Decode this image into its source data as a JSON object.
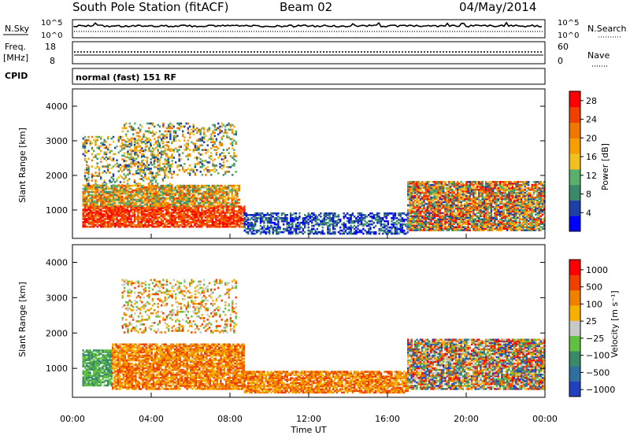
{
  "header": {
    "station": "South Pole Station (fitACF)",
    "beam": "Beam 02",
    "date": "04/May/2014"
  },
  "noise_panel": {
    "left_label": "N.Sky",
    "left_ticks": [
      "10^5",
      "10^0"
    ],
    "right_label": "N.Search",
    "right_ticks": [
      "10^5",
      "10^0"
    ]
  },
  "freq_panel": {
    "left_label_1": "Freq.",
    "left_label_2": "[MHz]",
    "left_ticks": [
      "18",
      "8"
    ],
    "right_label": "Nave",
    "right_ticks": [
      "60",
      "0"
    ]
  },
  "cpid": {
    "label": "CPID",
    "value": "normal (fast) 151 RF"
  },
  "colors": {
    "power_scale": [
      "#0000ff",
      "#1f3fa8",
      "#3a8a6a",
      "#58b06a",
      "#f0c020",
      "#f5a000",
      "#f07800",
      "#f04000",
      "#ff0000"
    ],
    "velocity_scale": [
      "#2040c0",
      "#3070a0",
      "#3a8a6a",
      "#60c040",
      "#c8c8c8",
      "#f5b000",
      "#f08000",
      "#f04000",
      "#ff0000"
    ]
  },
  "chart_data": [
    {
      "type": "heatmap",
      "title": "",
      "xlabel": "",
      "ylabel": "Slant Range [km]",
      "xlim": [
        "00:00",
        "00:00"
      ],
      "ylim": [
        180,
        4500
      ],
      "y_ticks": [
        "1000",
        "2000",
        "3000",
        "4000"
      ],
      "colorbar": {
        "label": "Power [dB]",
        "ticks": [
          "4",
          "8",
          "12",
          "16",
          "20",
          "24",
          "28"
        ],
        "range": [
          0,
          30
        ]
      },
      "regions": [
        {
          "t0": 0.5,
          "t1": 8.7,
          "r0": 500,
          "r1": 1100,
          "level": "strong"
        },
        {
          "t0": 0.5,
          "t1": 8.5,
          "r0": 1100,
          "r1": 1700,
          "level": "mid"
        },
        {
          "t0": 0.5,
          "t1": 5.0,
          "r0": 1700,
          "r1": 3100,
          "level": "patchy"
        },
        {
          "t0": 2.5,
          "t1": 8.3,
          "r0": 2000,
          "r1": 3500,
          "level": "patchy"
        },
        {
          "t0": 8.7,
          "t1": 17.0,
          "r0": 300,
          "r1": 900,
          "level": "weak"
        },
        {
          "t0": 17.0,
          "t1": 24.0,
          "r0": 400,
          "r1": 1800,
          "level": "mixed"
        }
      ]
    },
    {
      "type": "heatmap",
      "title": "",
      "xlabel": "Time UT",
      "ylabel": "Slant Range [km]",
      "xlim": [
        "00:00",
        "00:00"
      ],
      "ylim": [
        180,
        4500
      ],
      "x_ticks": [
        "00:00",
        "04:00",
        "08:00",
        "12:00",
        "16:00",
        "20:00",
        "00:00"
      ],
      "y_ticks": [
        "1000",
        "2000",
        "3000",
        "4000"
      ],
      "colorbar": {
        "label": "Velocity [m s⁻¹]",
        "ticks": [
          "1000",
          "500",
          "100",
          "25",
          "−25",
          "−100",
          "−500",
          "−1000"
        ],
        "range": [
          -1000,
          1000
        ]
      },
      "regions": [
        {
          "t0": 0.5,
          "t1": 2.0,
          "r0": 500,
          "r1": 1500,
          "level": "green"
        },
        {
          "t0": 2.0,
          "t1": 8.7,
          "r0": 400,
          "r1": 1700,
          "level": "orange"
        },
        {
          "t0": 2.5,
          "t1": 8.3,
          "r0": 2000,
          "r1": 3500,
          "level": "patchy"
        },
        {
          "t0": 8.7,
          "t1": 17.0,
          "r0": 300,
          "r1": 900,
          "level": "orange"
        },
        {
          "t0": 17.0,
          "t1": 24.0,
          "r0": 400,
          "r1": 1800,
          "level": "mixed"
        }
      ]
    }
  ]
}
